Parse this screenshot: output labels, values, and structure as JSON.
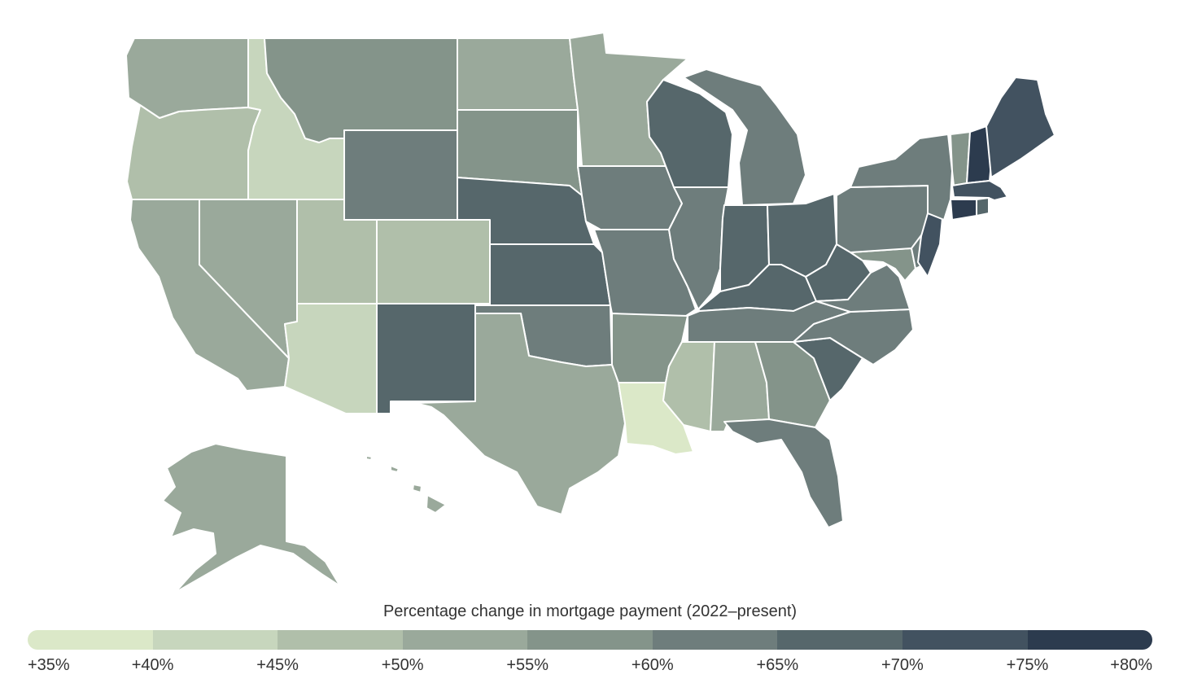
{
  "legend": {
    "title": "Percentage change in mortgage payment (2022–present)",
    "ticks": [
      "+35%",
      "+40%",
      "+45%",
      "+50%",
      "+55%",
      "+60%",
      "+65%",
      "+70%",
      "+75%",
      "+80%"
    ],
    "colors": [
      "#dbe8c8",
      "#c7d6bd",
      "#b0bfaa",
      "#9aa99b",
      "#84948a",
      "#6e7d7c",
      "#56676b",
      "#425260",
      "#2c3b4e"
    ]
  },
  "states": [
    {
      "id": "WA",
      "bin": 3
    },
    {
      "id": "OR",
      "bin": 2
    },
    {
      "id": "CA",
      "bin": 3
    },
    {
      "id": "NV",
      "bin": 3
    },
    {
      "id": "ID",
      "bin": 1
    },
    {
      "id": "MT",
      "bin": 4
    },
    {
      "id": "WY",
      "bin": 5
    },
    {
      "id": "UT",
      "bin": 2
    },
    {
      "id": "CO",
      "bin": 2
    },
    {
      "id": "AZ",
      "bin": 1
    },
    {
      "id": "NM",
      "bin": 6
    },
    {
      "id": "ND",
      "bin": 3
    },
    {
      "id": "SD",
      "bin": 4
    },
    {
      "id": "NE",
      "bin": 6
    },
    {
      "id": "KS",
      "bin": 6
    },
    {
      "id": "OK",
      "bin": 5
    },
    {
      "id": "TX",
      "bin": 3
    },
    {
      "id": "MN",
      "bin": 3
    },
    {
      "id": "IA",
      "bin": 5
    },
    {
      "id": "MO",
      "bin": 5
    },
    {
      "id": "AR",
      "bin": 4
    },
    {
      "id": "LA",
      "bin": 0
    },
    {
      "id": "WI",
      "bin": 6
    },
    {
      "id": "IL",
      "bin": 5
    },
    {
      "id": "MI",
      "bin": 5
    },
    {
      "id": "IN",
      "bin": 6
    },
    {
      "id": "OH",
      "bin": 6
    },
    {
      "id": "KY",
      "bin": 6
    },
    {
      "id": "TN",
      "bin": 5
    },
    {
      "id": "MS",
      "bin": 2
    },
    {
      "id": "AL",
      "bin": 3
    },
    {
      "id": "GA",
      "bin": 4
    },
    {
      "id": "FL",
      "bin": 5
    },
    {
      "id": "SC",
      "bin": 6
    },
    {
      "id": "NC",
      "bin": 5
    },
    {
      "id": "VA",
      "bin": 5
    },
    {
      "id": "WV",
      "bin": 6
    },
    {
      "id": "PA",
      "bin": 5
    },
    {
      "id": "NY",
      "bin": 5
    },
    {
      "id": "VT",
      "bin": 4
    },
    {
      "id": "NH",
      "bin": 8
    },
    {
      "id": "ME",
      "bin": 7
    },
    {
      "id": "MA",
      "bin": 7
    },
    {
      "id": "RI",
      "bin": 6
    },
    {
      "id": "CT",
      "bin": 8
    },
    {
      "id": "NJ",
      "bin": 7
    },
    {
      "id": "DE",
      "bin": 5
    },
    {
      "id": "MD",
      "bin": 4
    },
    {
      "id": "AK",
      "bin": 3
    },
    {
      "id": "HI",
      "bin": 3
    }
  ]
}
